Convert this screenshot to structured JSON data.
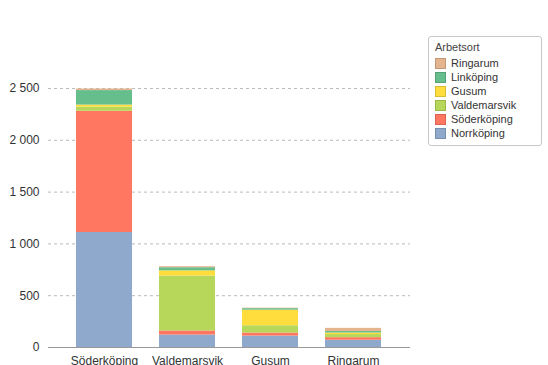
{
  "chart_data": {
    "type": "bar",
    "stacked": true,
    "legend_title": "Arbetsort",
    "categories": [
      "Söderköping",
      "Valdemarsvik",
      "Gusum",
      "Ringarum"
    ],
    "series": [
      {
        "name": "Norrköping",
        "color": "#8EA9CC",
        "values": [
          1110,
          120,
          110,
          70
        ]
      },
      {
        "name": "Söderköping",
        "color": "#FF7661",
        "values": [
          1170,
          40,
          30,
          25
        ]
      },
      {
        "name": "Valdemarsvik",
        "color": "#B7D75A",
        "values": [
          40,
          530,
          70,
          30
        ]
      },
      {
        "name": "Gusum",
        "color": "#FFDD3C",
        "values": [
          20,
          50,
          150,
          15
        ]
      },
      {
        "name": "Linköping",
        "color": "#66BE8C",
        "values": [
          140,
          30,
          15,
          15
        ]
      },
      {
        "name": "Ringarum",
        "color": "#E3B48E",
        "values": [
          15,
          10,
          5,
          30
        ]
      }
    ],
    "ylim": [
      0,
      2500
    ],
    "yticks": [
      0,
      500,
      {
        "value": 1000,
        "label": "1 000"
      },
      {
        "value": 1500,
        "label": "1 500"
      },
      {
        "value": 2000,
        "label": "2 000"
      },
      {
        "value": 2500,
        "label": "2 500"
      }
    ],
    "grid": true,
    "legend": "top-right"
  }
}
